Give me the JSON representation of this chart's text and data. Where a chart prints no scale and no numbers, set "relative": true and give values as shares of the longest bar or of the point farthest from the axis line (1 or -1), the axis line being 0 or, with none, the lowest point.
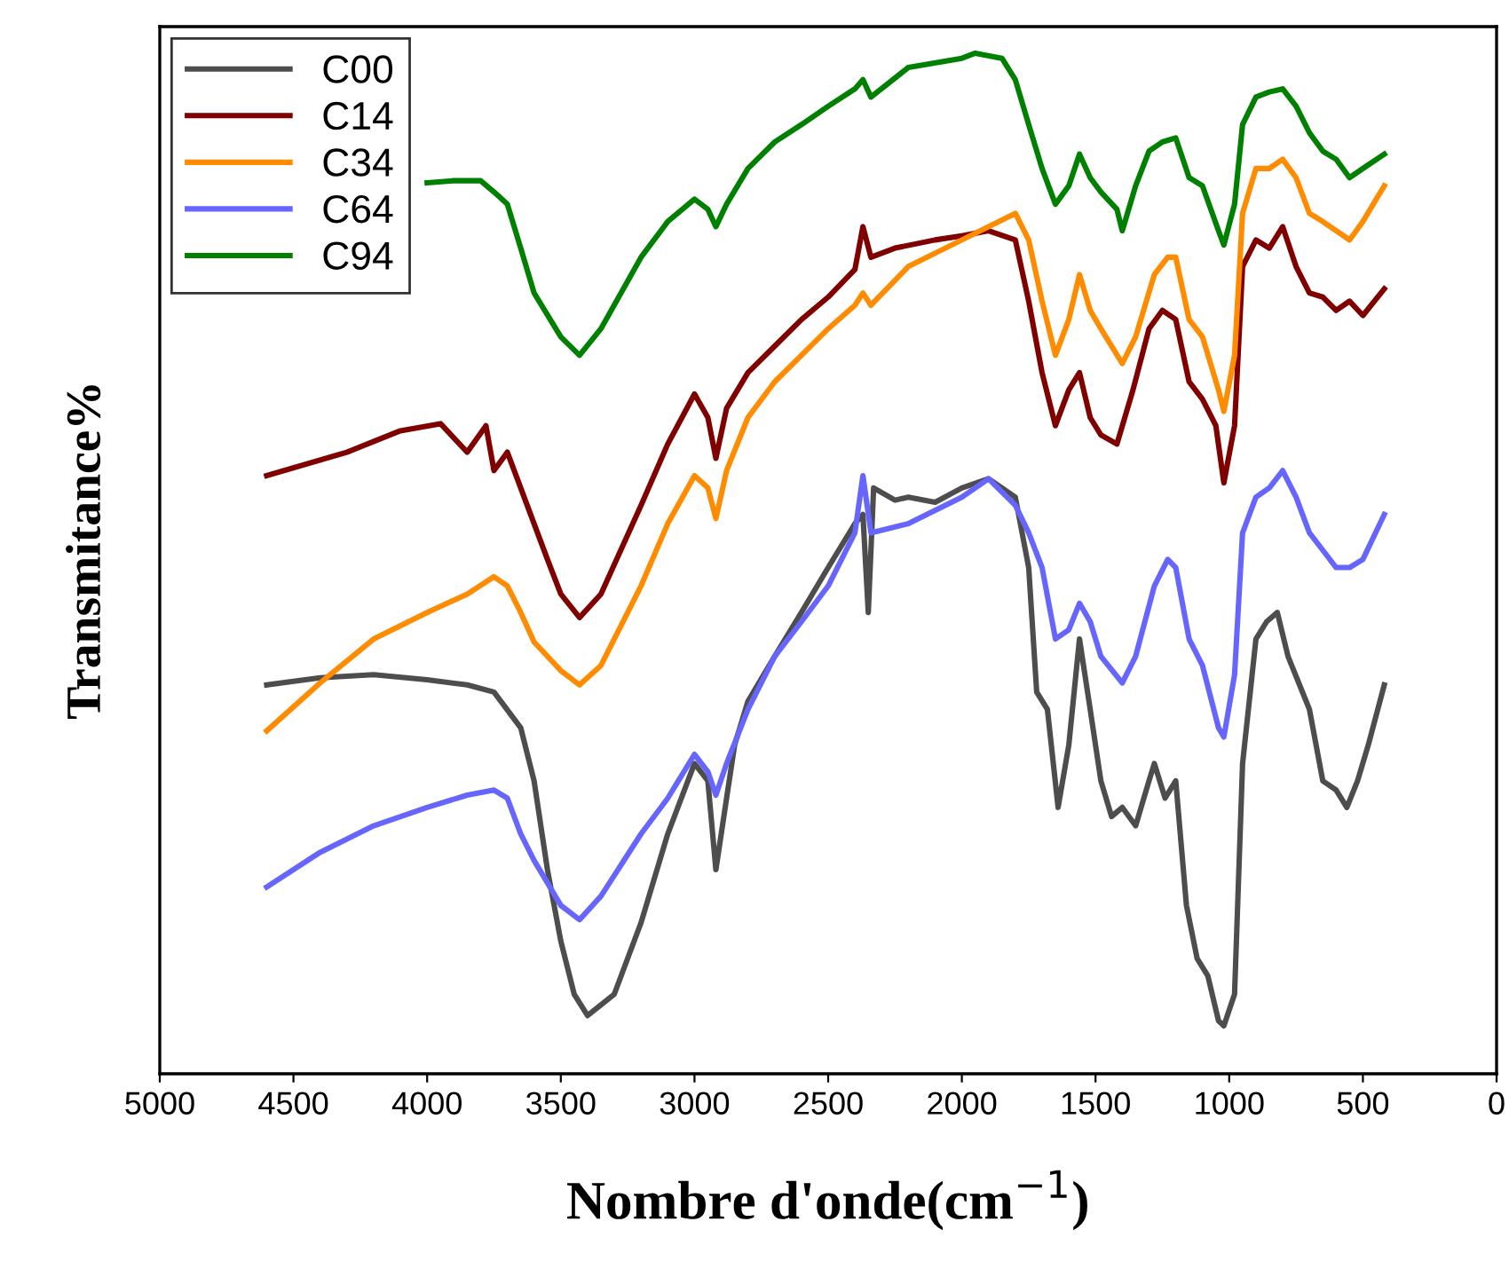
{
  "chart_data": {
    "type": "line",
    "relative": true,
    "xlabel": "Nombre d'onde(cm$^{−1}$)",
    "ylabel": "Transmitance%",
    "xlim": [
      5000,
      0
    ],
    "xticks": [
      5000,
      4500,
      4000,
      3500,
      3000,
      2500,
      2000,
      1500,
      1000,
      500,
      0
    ],
    "tick_labels": "x",
    "legend": "top left",
    "grid": false,
    "series": [
      {
        "name": "C00",
        "color": "#4d4d4d",
        "x": [
          4600,
          4400,
          4200,
          4000,
          3850,
          3750,
          3650,
          3600,
          3550,
          3500,
          3450,
          3400,
          3300,
          3200,
          3100,
          3000,
          2950,
          2920,
          2880,
          2850,
          2800,
          2700,
          2600,
          2500,
          2400,
          2370,
          2350,
          2330,
          2250,
          2200,
          2100,
          2000,
          1900,
          1800,
          1750,
          1720,
          1680,
          1640,
          1600,
          1560,
          1520,
          1480,
          1440,
          1400,
          1350,
          1300,
          1280,
          1240,
          1200,
          1160,
          1120,
          1080,
          1040,
          1020,
          980,
          950,
          900,
          860,
          820,
          780,
          740,
          700,
          650,
          600,
          560,
          520,
          480,
          420
        ],
        "values": [
          0.381,
          0.388,
          0.391,
          0.386,
          0.381,
          0.374,
          0.339,
          0.287,
          0.2,
          0.13,
          0.078,
          0.057,
          0.078,
          0.148,
          0.235,
          0.304,
          0.287,
          0.2,
          0.27,
          0.322,
          0.365,
          0.409,
          0.452,
          0.496,
          0.539,
          0.548,
          0.452,
          0.574,
          0.562,
          0.565,
          0.56,
          0.574,
          0.583,
          0.565,
          0.496,
          0.374,
          0.357,
          0.261,
          0.322,
          0.426,
          0.357,
          0.287,
          0.252,
          0.261,
          0.243,
          0.287,
          0.304,
          0.27,
          0.287,
          0.165,
          0.113,
          0.096,
          0.052,
          0.047,
          0.078,
          0.304,
          0.426,
          0.443,
          0.452,
          0.409,
          0.383,
          0.357,
          0.287,
          0.278,
          0.261,
          0.287,
          0.322,
          0.381
        ]
      },
      {
        "name": "C14",
        "color": "#800000",
        "x": [
          4600,
          4300,
          4100,
          3950,
          3850,
          3780,
          3750,
          3700,
          3650,
          3600,
          3550,
          3500,
          3430,
          3350,
          3200,
          3100,
          3000,
          2950,
          2920,
          2880,
          2800,
          2700,
          2600,
          2500,
          2400,
          2370,
          2340,
          2250,
          2100,
          2000,
          1900,
          1800,
          1750,
          1700,
          1650,
          1600,
          1560,
          1520,
          1480,
          1420,
          1360,
          1300,
          1250,
          1200,
          1150,
          1100,
          1050,
          1020,
          980,
          950,
          900,
          850,
          800,
          750,
          700,
          650,
          600,
          550,
          500,
          420
        ],
        "values": [
          0.586,
          0.609,
          0.63,
          0.637,
          0.609,
          0.635,
          0.591,
          0.609,
          0.574,
          0.539,
          0.504,
          0.47,
          0.447,
          0.47,
          0.557,
          0.617,
          0.666,
          0.643,
          0.603,
          0.652,
          0.687,
          0.713,
          0.739,
          0.761,
          0.788,
          0.83,
          0.8,
          0.809,
          0.817,
          0.821,
          0.826,
          0.817,
          0.757,
          0.687,
          0.635,
          0.67,
          0.687,
          0.643,
          0.626,
          0.617,
          0.67,
          0.73,
          0.748,
          0.739,
          0.678,
          0.661,
          0.635,
          0.579,
          0.635,
          0.791,
          0.817,
          0.809,
          0.83,
          0.791,
          0.765,
          0.761,
          0.748,
          0.757,
          0.743,
          0.769
        ]
      },
      {
        "name": "C34",
        "color": "#ff8c00",
        "x": [
          4600,
          4400,
          4200,
          4000,
          3850,
          3750,
          3700,
          3650,
          3600,
          3500,
          3430,
          3350,
          3200,
          3100,
          3000,
          2950,
          2920,
          2880,
          2800,
          2700,
          2600,
          2500,
          2400,
          2370,
          2340,
          2200,
          2000,
          1800,
          1750,
          1700,
          1650,
          1600,
          1560,
          1520,
          1480,
          1400,
          1350,
          1280,
          1230,
          1200,
          1150,
          1100,
          1040,
          1020,
          980,
          950,
          900,
          850,
          800,
          750,
          700,
          650,
          600,
          550,
          500,
          420
        ],
        "values": [
          0.336,
          0.383,
          0.426,
          0.452,
          0.47,
          0.487,
          0.478,
          0.452,
          0.423,
          0.395,
          0.381,
          0.4,
          0.478,
          0.539,
          0.586,
          0.574,
          0.544,
          0.591,
          0.643,
          0.678,
          0.704,
          0.73,
          0.753,
          0.765,
          0.753,
          0.791,
          0.817,
          0.843,
          0.817,
          0.757,
          0.704,
          0.739,
          0.783,
          0.748,
          0.73,
          0.696,
          0.722,
          0.783,
          0.8,
          0.8,
          0.739,
          0.722,
          0.67,
          0.649,
          0.704,
          0.843,
          0.887,
          0.887,
          0.896,
          0.878,
          0.843,
          0.835,
          0.826,
          0.817,
          0.835,
          0.87
        ]
      },
      {
        "name": "C64",
        "color": "#6666ff",
        "x": [
          4600,
          4400,
          4200,
          4000,
          3850,
          3750,
          3700,
          3650,
          3600,
          3500,
          3430,
          3350,
          3200,
          3100,
          3000,
          2950,
          2920,
          2880,
          2800,
          2700,
          2600,
          2500,
          2400,
          2370,
          2340,
          2200,
          2000,
          1900,
          1800,
          1750,
          1700,
          1650,
          1600,
          1560,
          1520,
          1480,
          1400,
          1350,
          1280,
          1230,
          1200,
          1150,
          1100,
          1040,
          1020,
          980,
          950,
          900,
          850,
          800,
          750,
          700,
          650,
          600,
          550,
          500,
          420
        ],
        "values": [
          0.183,
          0.217,
          0.243,
          0.261,
          0.273,
          0.278,
          0.27,
          0.235,
          0.209,
          0.165,
          0.151,
          0.174,
          0.235,
          0.27,
          0.313,
          0.296,
          0.273,
          0.304,
          0.357,
          0.409,
          0.443,
          0.478,
          0.53,
          0.586,
          0.53,
          0.539,
          0.565,
          0.583,
          0.557,
          0.53,
          0.496,
          0.426,
          0.435,
          0.461,
          0.443,
          0.409,
          0.383,
          0.409,
          0.478,
          0.504,
          0.496,
          0.426,
          0.4,
          0.339,
          0.33,
          0.391,
          0.53,
          0.565,
          0.574,
          0.591,
          0.565,
          0.53,
          0.513,
          0.496,
          0.496,
          0.504,
          0.548
        ]
      },
      {
        "name": "C94",
        "color": "#008000",
        "x": [
          4000,
          3900,
          3800,
          3750,
          3700,
          3650,
          3600,
          3500,
          3430,
          3350,
          3200,
          3100,
          3000,
          2950,
          2920,
          2880,
          2800,
          2700,
          2600,
          2500,
          2400,
          2370,
          2340,
          2200,
          2000,
          1950,
          1850,
          1800,
          1750,
          1700,
          1650,
          1600,
          1560,
          1520,
          1480,
          1420,
          1400,
          1350,
          1300,
          1250,
          1200,
          1150,
          1100,
          1040,
          1020,
          980,
          950,
          900,
          850,
          800,
          750,
          700,
          650,
          600,
          550,
          500,
          420
        ],
        "values": [
          0.873,
          0.875,
          0.875,
          0.864,
          0.852,
          0.809,
          0.765,
          0.722,
          0.704,
          0.73,
          0.8,
          0.835,
          0.857,
          0.847,
          0.83,
          0.852,
          0.887,
          0.913,
          0.93,
          0.948,
          0.965,
          0.974,
          0.957,
          0.986,
          0.995,
          1.0,
          0.995,
          0.974,
          0.93,
          0.887,
          0.852,
          0.87,
          0.901,
          0.878,
          0.864,
          0.847,
          0.826,
          0.87,
          0.904,
          0.913,
          0.917,
          0.878,
          0.87,
          0.826,
          0.812,
          0.852,
          0.93,
          0.957,
          0.962,
          0.965,
          0.948,
          0.922,
          0.904,
          0.896,
          0.878,
          0.887,
          0.901
        ]
      }
    ]
  }
}
